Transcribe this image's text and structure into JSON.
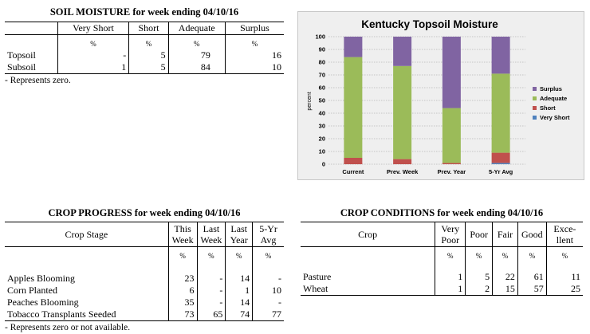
{
  "soil": {
    "title": "SOIL MOISTURE for week ending 04/10/16",
    "headers": [
      "",
      "Very Short",
      "Short",
      "Adequate",
      "Surplus"
    ],
    "units": [
      "",
      "%",
      "%",
      "%",
      "%"
    ],
    "rows": [
      {
        "label": "Topsoil",
        "values": [
          "-",
          "5",
          "79",
          "16"
        ]
      },
      {
        "label": "Subsoil",
        "values": [
          "1",
          "5",
          "84",
          "10"
        ]
      }
    ],
    "footnote": "- Represents zero."
  },
  "chart_data": {
    "type": "bar",
    "stacked": true,
    "title": "Kentucky Topsoil Moisture",
    "ylabel": "percent",
    "xlabel": "",
    "ylim": [
      0,
      100
    ],
    "yticks": [
      0,
      10,
      20,
      30,
      40,
      50,
      60,
      70,
      80,
      90,
      100
    ],
    "grid": true,
    "legend_position": "right",
    "categories": [
      "Current",
      "Prev. Week",
      "Prev. Year",
      "5-Yr Avg"
    ],
    "series": [
      {
        "name": "Very Short",
        "color": "#4f81bd",
        "values": [
          0,
          0,
          0,
          1
        ]
      },
      {
        "name": "Short",
        "color": "#c0504d",
        "values": [
          5,
          4,
          1,
          8
        ]
      },
      {
        "name": "Adequate",
        "color": "#9bbb59",
        "values": [
          79,
          73,
          43,
          62
        ]
      },
      {
        "name": "Surplus",
        "color": "#8064a2",
        "values": [
          16,
          23,
          56,
          29
        ]
      }
    ]
  },
  "progress": {
    "title": "CROP PROGRESS for week ending 04/10/16",
    "headers": [
      "Crop Stage",
      "This Week",
      "Last Week",
      "Last Year",
      "5-Yr Avg"
    ],
    "headers_line1": [
      "",
      "This",
      "Last",
      "Last",
      "5-Yr"
    ],
    "headers_line2": [
      "",
      "Week",
      "Week",
      "Year",
      "Avg"
    ],
    "units": [
      "",
      "%",
      "%",
      "%",
      "%"
    ],
    "rows": [
      {
        "label": "Apples Blooming",
        "values": [
          "23",
          "-",
          "14",
          "-"
        ]
      },
      {
        "label": "Corn Planted",
        "values": [
          "6",
          "-",
          "1",
          "10"
        ]
      },
      {
        "label": "Peaches Blooming",
        "values": [
          "35",
          "-",
          "14",
          "-"
        ]
      },
      {
        "label": "Tobacco Transplants Seeded",
        "values": [
          "73",
          "65",
          "74",
          "77"
        ]
      }
    ],
    "footnote": "- Represents zero or not available."
  },
  "conditions": {
    "title": "CROP CONDITIONS for week ending 04/10/16",
    "headers_line1": [
      "Crop",
      "Very",
      "Poor",
      "Fair",
      "Good",
      "Exce-"
    ],
    "headers_line2": [
      "",
      "Poor",
      "",
      "",
      "",
      "llent"
    ],
    "units": [
      "",
      "%",
      "%",
      "%",
      "%",
      "%"
    ],
    "rows": [
      {
        "label": "Pasture",
        "values": [
          "1",
          "5",
          "22",
          "61",
          "11"
        ]
      },
      {
        "label": "Wheat",
        "values": [
          "1",
          "2",
          "15",
          "57",
          "25"
        ]
      }
    ]
  }
}
